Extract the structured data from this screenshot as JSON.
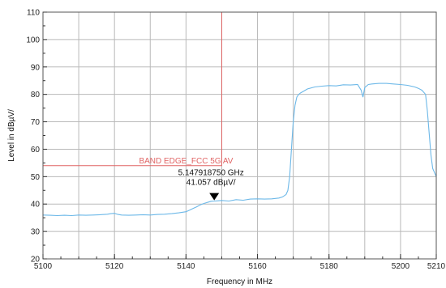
{
  "chart_data": {
    "type": "line",
    "title": "",
    "xlabel": "Frequency in MHz",
    "ylabel": "Level in dBµV/",
    "xlim": [
      5100,
      5210
    ],
    "ylim": [
      20,
      110
    ],
    "x_ticks": [
      5100,
      5120,
      5140,
      5160,
      5180,
      5200,
      5210
    ],
    "y_ticks": [
      20,
      30,
      40,
      50,
      60,
      70,
      80,
      90,
      100,
      110
    ],
    "grid": true,
    "colors": {
      "trace": "#6cb8e8",
      "limit": "#e06464",
      "grid": "#b9b9b9"
    },
    "limit_line": {
      "label": "BAND EDGE_FCC 5G AV",
      "level": 54,
      "x_start": 5100,
      "x_end": 5150,
      "vertical_x": 5150
    },
    "marker": {
      "x": 5147.9,
      "y": 41.057,
      "frequency_text": "5.147918750 GHz",
      "level_text": "41.057 dBµV/"
    },
    "series": [
      {
        "x": [
          5100,
          5102,
          5104,
          5106,
          5108,
          5110,
          5112,
          5114,
          5116,
          5118,
          5119,
          5120,
          5121,
          5122,
          5124,
          5126,
          5128,
          5130,
          5132,
          5134,
          5136,
          5138,
          5140,
          5141,
          5142,
          5143,
          5144,
          5145,
          5146,
          5147,
          5148,
          5149,
          5150,
          5152,
          5154,
          5156,
          5158,
          5160,
          5162,
          5164,
          5166,
          5167,
          5168,
          5168.5,
          5169,
          5169.5,
          5170,
          5170.5,
          5171,
          5171.5,
          5172,
          5174,
          5176,
          5178,
          5180,
          5182,
          5184,
          5186,
          5188,
          5189,
          5189.5,
          5190,
          5191,
          5192,
          5194,
          5196,
          5198,
          5200,
          5202,
          5204,
          5205,
          5206,
          5207,
          5207.5,
          5208,
          5208.5,
          5209,
          5210
        ],
        "values": [
          36,
          35.9,
          35.8,
          35.9,
          35.8,
          36,
          35.9,
          36,
          36.1,
          36.3,
          36.5,
          36.6,
          36.2,
          36,
          35.9,
          36,
          36.1,
          36,
          36.2,
          36.3,
          36.5,
          36.8,
          37.2,
          37.8,
          38.4,
          39,
          39.7,
          40.2,
          40.6,
          41,
          41.1,
          41.2,
          41.3,
          41.1,
          41.6,
          41.4,
          41.8,
          41.9,
          41.8,
          41.9,
          42.2,
          42.6,
          43.5,
          45,
          50,
          60,
          70,
          76,
          79,
          80,
          80.5,
          82,
          82.7,
          83,
          83.2,
          83.1,
          83.5,
          83.4,
          83.6,
          81.5,
          79,
          82.5,
          83.6,
          83.8,
          84,
          84,
          83.8,
          83.6,
          83.3,
          82.7,
          82.2,
          81.5,
          80,
          74,
          66,
          58,
          53,
          50
        ]
      }
    ]
  }
}
